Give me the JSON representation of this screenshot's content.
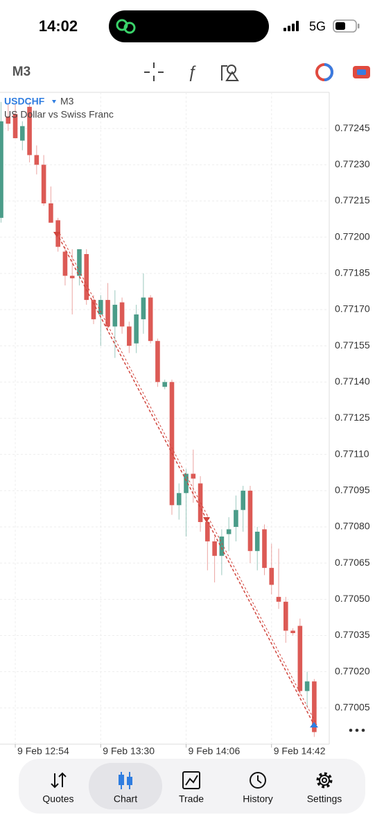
{
  "status_bar": {
    "time": "14:02",
    "network": "5G"
  },
  "toolbar": {
    "timeframe": "M3"
  },
  "chart_data": {
    "type": "candlestick",
    "symbol": "USDCHF",
    "timeframe": "M3",
    "description": "US Dollar vs Swiss Franc",
    "categories": [
      null,
      null,
      "9 Feb 12:54",
      null,
      null,
      null,
      null,
      null,
      null,
      null,
      null,
      null,
      null,
      null,
      "9 Feb 13:30",
      null,
      null,
      null,
      null,
      null,
      null,
      null,
      null,
      null,
      null,
      null,
      "9 Feb 14:06",
      null,
      null,
      null,
      null,
      null,
      null,
      null,
      null,
      null,
      null,
      null,
      "9 Feb 14:42",
      null,
      null,
      null,
      null,
      null,
      null
    ],
    "open": [
      0.77208,
      0.7725,
      0.77251,
      0.7724,
      0.77254,
      0.77234,
      0.7723,
      0.77214,
      0.77207,
      0.77194,
      0.77184,
      0.77184,
      0.77193,
      0.77174,
      0.77168,
      0.77174,
      0.77163,
      0.77173,
      0.77163,
      0.77156,
      0.77166,
      0.77175,
      0.77157,
      0.77138,
      0.7714,
      0.77089,
      0.77094,
      0.77102,
      0.77098,
      0.77082,
      0.77074,
      0.77068,
      0.77077,
      0.7708,
      0.77087,
      0.77095,
      0.7707,
      0.77079,
      0.77063,
      0.77051,
      0.77049,
      0.77037,
      0.77039,
      0.77012,
      0.77016
    ],
    "high": [
      0.77256,
      0.77255,
      0.77255,
      0.77248,
      0.77256,
      0.77238,
      0.77234,
      0.77221,
      0.77208,
      0.77196,
      0.77195,
      0.77195,
      0.77195,
      0.77176,
      0.77176,
      0.77181,
      0.77178,
      0.77175,
      0.77165,
      0.77172,
      0.77185,
      0.77176,
      0.77158,
      0.77141,
      0.77141,
      0.77098,
      0.77104,
      0.77112,
      0.77101,
      0.77085,
      0.77076,
      0.77079,
      0.77084,
      0.77093,
      0.77097,
      0.77097,
      0.7708,
      0.77081,
      0.77073,
      0.77071,
      0.77051,
      0.77038,
      0.77042,
      0.7702,
      0.77017
    ],
    "low": [
      0.77206,
      0.77244,
      0.77241,
      0.77236,
      0.77231,
      0.77226,
      0.77213,
      0.77206,
      0.77194,
      0.7718,
      0.77168,
      0.7718,
      0.77172,
      0.77164,
      0.77155,
      0.77161,
      0.7715,
      0.7716,
      0.77152,
      0.77152,
      0.7716,
      0.77156,
      0.77138,
      0.77137,
      0.77085,
      0.77083,
      0.77076,
      0.7709,
      0.77078,
      0.77062,
      0.77057,
      0.7706,
      0.7707,
      0.77074,
      0.77078,
      0.77065,
      0.77062,
      0.7706,
      0.77052,
      0.77046,
      0.77032,
      0.77035,
      0.7701,
      0.77005,
      0.76993
    ],
    "close": [
      0.77248,
      0.77247,
      0.77241,
      0.77246,
      0.77234,
      0.7723,
      0.77214,
      0.77206,
      0.77196,
      0.77184,
      0.77183,
      0.77195,
      0.77174,
      0.77166,
      0.77174,
      0.77163,
      0.77172,
      0.77163,
      0.77155,
      0.77168,
      0.77175,
      0.77157,
      0.7714,
      0.7714,
      0.77089,
      0.77094,
      0.77102,
      0.771,
      0.77082,
      0.77074,
      0.77068,
      0.77076,
      0.77079,
      0.77087,
      0.77095,
      0.7707,
      0.77078,
      0.77063,
      0.77056,
      0.77049,
      0.77037,
      0.77036,
      0.77012,
      0.77016,
      0.76995
    ],
    "up_color": "#4b9c89",
    "down_color": "#dc5a55",
    "ylim": [
      0.7699,
      0.7726
    ],
    "yticks": [
      0.77245,
      {
        "value": 0.7723,
        "label": "0.77230"
      },
      0.77215,
      {
        "value": 0.772,
        "label": "0.77200"
      },
      0.77185,
      {
        "value": 0.7717,
        "label": "0.77170"
      },
      0.77155,
      {
        "value": 0.7714,
        "label": "0.77140"
      },
      0.77125,
      {
        "value": 0.7711,
        "label": "0.77110"
      },
      0.77095,
      {
        "value": 0.7708,
        "label": "0.77080"
      },
      0.77065,
      {
        "value": 0.7705,
        "label": "0.77050"
      },
      0.77035,
      {
        "value": 0.7702,
        "label": "0.77020"
      },
      0.77005
    ],
    "grid": true
  },
  "nav": {
    "items": [
      {
        "label": "Quotes",
        "active": false
      },
      {
        "label": "Chart",
        "active": true
      },
      {
        "label": "Trade",
        "active": false
      },
      {
        "label": "History",
        "active": false
      },
      {
        "label": "Settings",
        "active": false
      }
    ]
  }
}
